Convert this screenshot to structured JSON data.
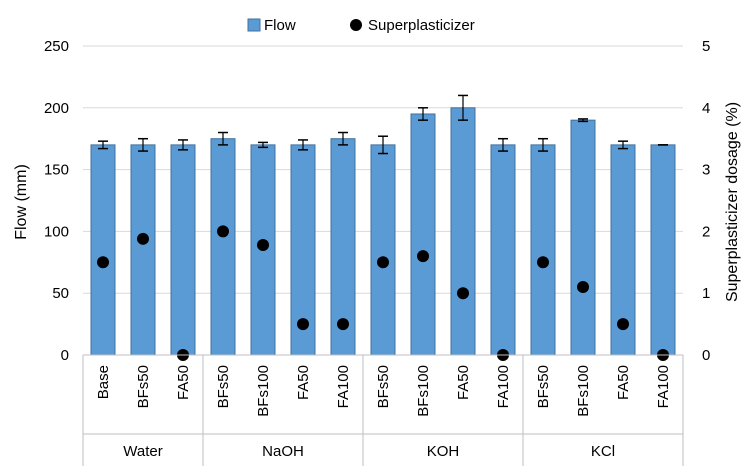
{
  "chart_data": {
    "type": "bar",
    "legend": {
      "position": "top",
      "entries": [
        {
          "name": "Flow",
          "marker": "bar"
        },
        {
          "name": "Superplasticizer",
          "marker": "dot"
        }
      ]
    },
    "y_left": {
      "label": "Flow (mm)",
      "min": 0,
      "max": 250,
      "step": 50,
      "ticks": [
        "0",
        "50",
        "100",
        "150",
        "200",
        "250"
      ]
    },
    "y_right": {
      "label": "Superplasticizer dosage (%)",
      "min": 0,
      "max": 5,
      "step": 1,
      "ticks": [
        "0",
        "1",
        "2",
        "3",
        "4",
        "5"
      ]
    },
    "grid": true,
    "groups": [
      {
        "name": "Water",
        "categories": [
          "Base",
          "BFs50",
          "FA50"
        ]
      },
      {
        "name": "NaOH",
        "categories": [
          "BFs50",
          "BFs100",
          "FA50",
          "FA100"
        ]
      },
      {
        "name": "KOH",
        "categories": [
          "BFs50",
          "BFs100",
          "FA50",
          "FA100"
        ]
      },
      {
        "name": "KCl",
        "categories": [
          "BFs50",
          "BFs100",
          "FA50",
          "FA100"
        ]
      }
    ],
    "series": [
      {
        "name": "Flow",
        "axis": "left",
        "type": "bar",
        "values": [
          170,
          170,
          170,
          175,
          170,
          170,
          175,
          170,
          195,
          200,
          170,
          170,
          190,
          170,
          170
        ],
        "errors": [
          3,
          5,
          4,
          5,
          2,
          4,
          5,
          7,
          5,
          10,
          5,
          5,
          1,
          3,
          0
        ]
      },
      {
        "name": "Superplasticizer",
        "axis": "right",
        "type": "scatter",
        "values": [
          1.5,
          1.88,
          0,
          2.0,
          1.78,
          0.5,
          0.5,
          1.5,
          1.6,
          1.0,
          0,
          1.5,
          1.1,
          0.5,
          0
        ]
      }
    ],
    "colors": {
      "bar_fill": "#5b9bd5",
      "bar_stroke": "#41719c",
      "dot": "#000000",
      "grid": "#d9d9d9",
      "axis": "#bfbfbf"
    }
  }
}
